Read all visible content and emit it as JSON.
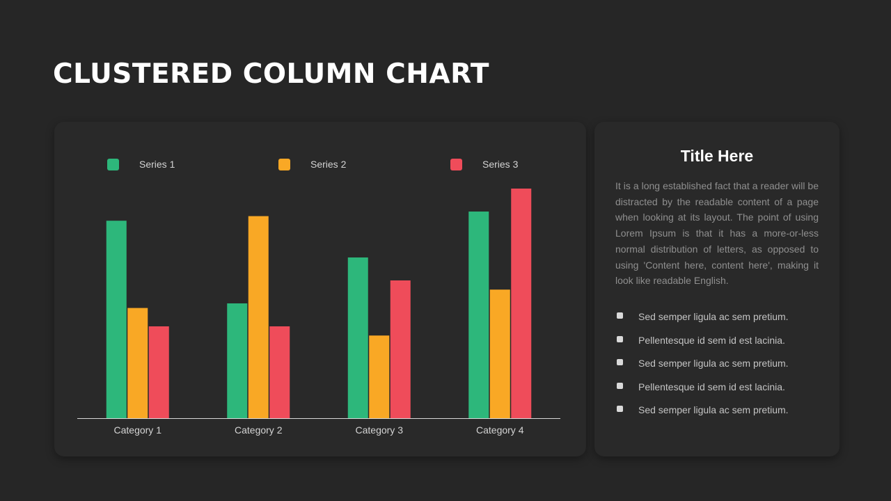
{
  "page": {
    "title": "CLUSTERED COLUMN CHART"
  },
  "chart_data": {
    "type": "bar",
    "categories": [
      "Category 1",
      "Category 2",
      "Category 3",
      "Category 4"
    ],
    "series": [
      {
        "name": "Series 1",
        "color": "#2db77b",
        "values": [
          4.3,
          2.5,
          3.5,
          4.5
        ]
      },
      {
        "name": "Series 2",
        "color": "#f9a825",
        "values": [
          2.4,
          4.4,
          1.8,
          2.8
        ]
      },
      {
        "name": "Series 3",
        "color": "#ef4c5a",
        "values": [
          2.0,
          2.0,
          3.0,
          5.0
        ]
      }
    ],
    "ylim": [
      0,
      5
    ],
    "grid": false,
    "legend": "top"
  },
  "side_panel": {
    "title": "Title Here",
    "body": "It is a long established fact that a reader will be distracted by the readable content of a page when looking at its layout. The point of using Lorem Ipsum is that it has a more-or-less normal distribution of letters, as opposed to using 'Content here, content here', making it look like readable English.",
    "bullets": [
      "Sed semper ligula ac sem pretium.",
      "Pellentesque id sem id est lacinia.",
      "Sed semper ligula ac sem pretium.",
      "Pellentesque id sem id est lacinia.",
      "Sed semper ligula ac sem pretium."
    ]
  }
}
